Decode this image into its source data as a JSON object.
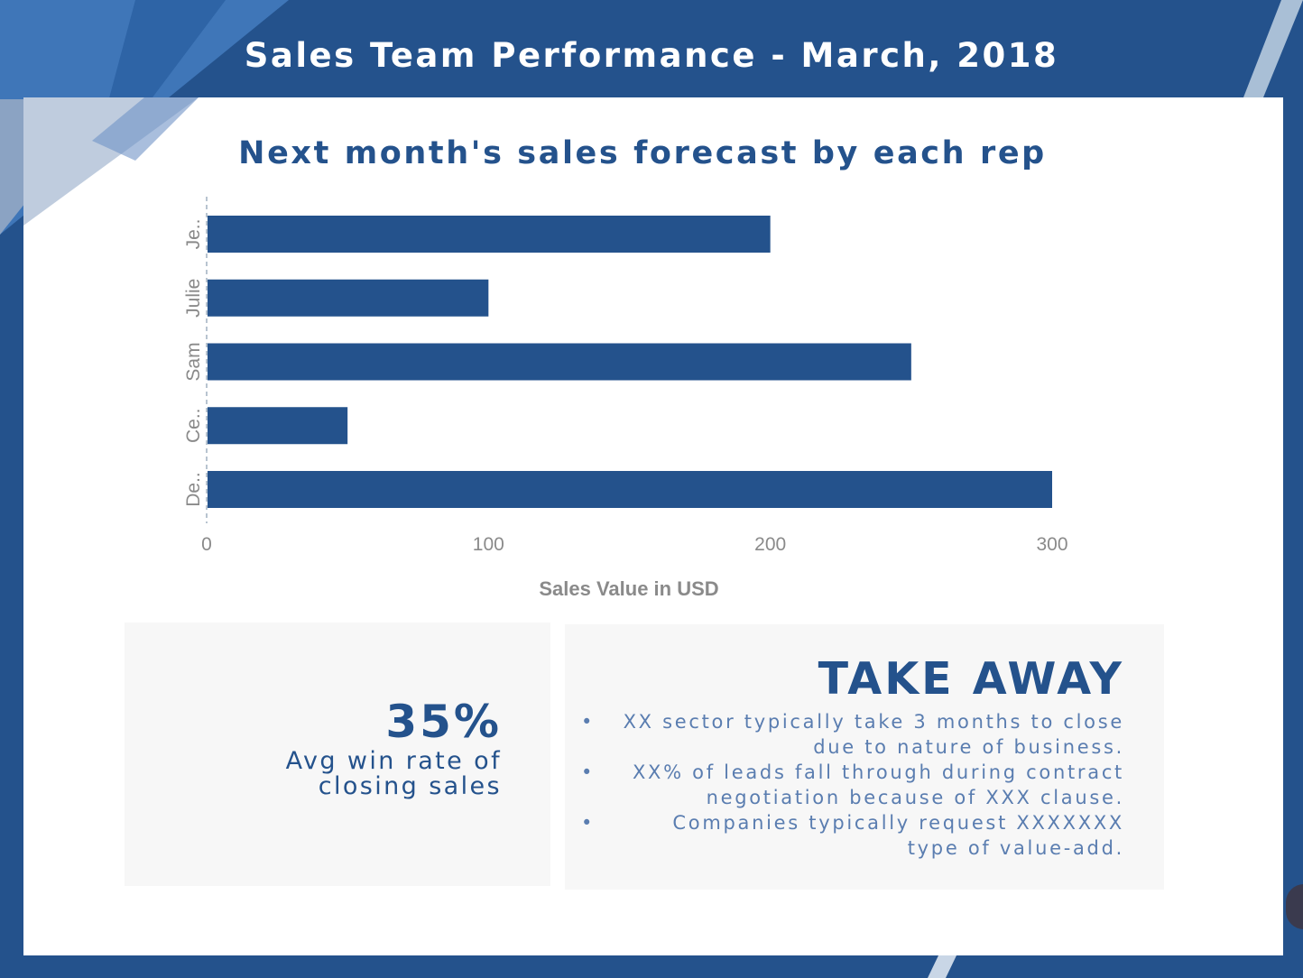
{
  "header": {
    "title": "Sales Team Performance - March, 2018"
  },
  "chart_data": {
    "type": "bar",
    "orientation": "horizontal",
    "title": "Next month's sales forecast by each rep",
    "xlabel": "Sales Value in USD",
    "ylabel": "",
    "categories": [
      "Je..",
      "Julie",
      "Sam",
      "Ce..",
      "De.."
    ],
    "values": [
      200,
      100,
      250,
      50,
      300
    ],
    "xlim": [
      0,
      300
    ],
    "xticks": [
      "0",
      "100",
      "200",
      "300"
    ],
    "bar_color": "#24528c",
    "grid": false,
    "legend": "none"
  },
  "kpi": {
    "value": "35%",
    "label": "Avg win rate of closing sales"
  },
  "takeaway": {
    "title": "TAKE AWAY",
    "bullet_glyph": "•",
    "items": [
      "XX sector typically take 3 months to close due to nature of business.",
      "XX% of leads fall through during contract negotiation because of XXX clause.",
      "Companies typically request XXXXXXX type of value-add."
    ]
  },
  "colors": {
    "primary": "#24528c",
    "accent_light": "#5a7db0",
    "panel_bg": "#f7f7f7",
    "axis_text": "#8a8a8a"
  }
}
